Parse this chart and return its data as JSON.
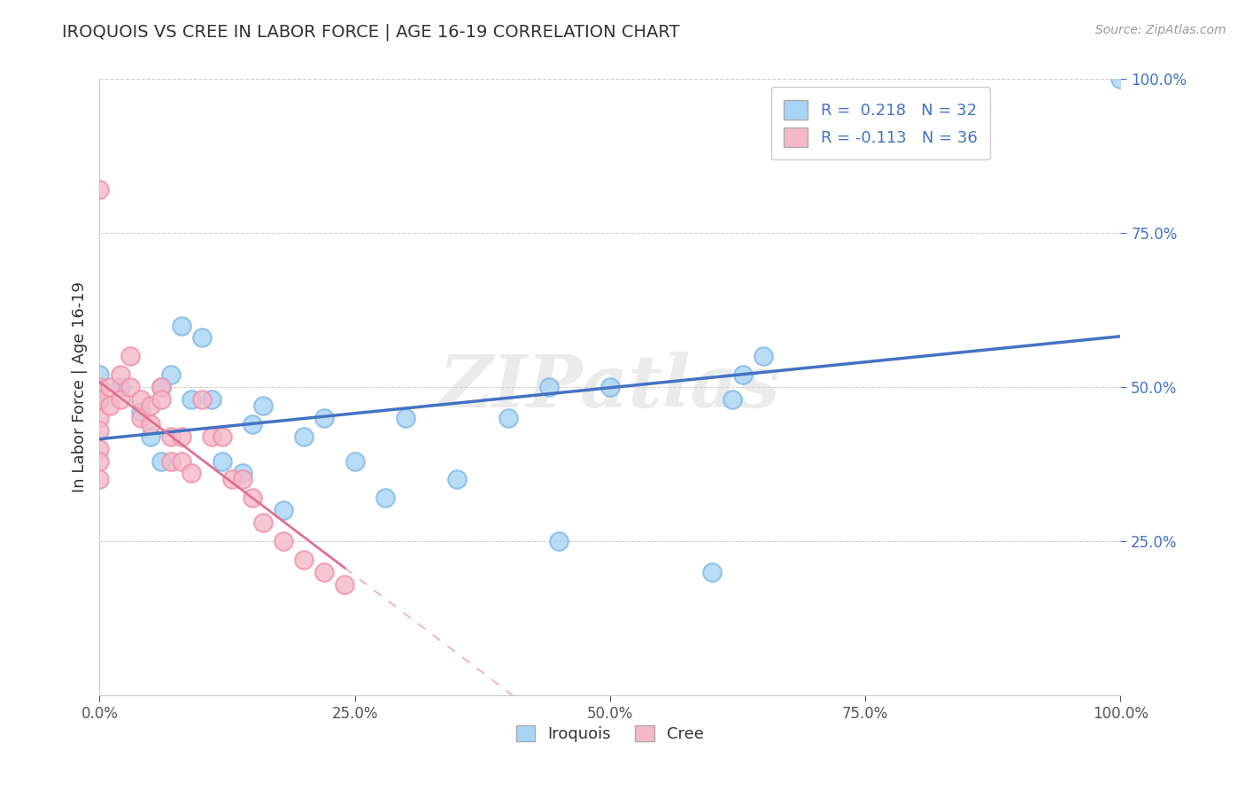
{
  "title": "IROQUOIS VS CREE IN LABOR FORCE | AGE 16-19 CORRELATION CHART",
  "source": "Source: ZipAtlas.com",
  "ylabel": "In Labor Force | Age 16-19",
  "xlim": [
    0.0,
    1.0
  ],
  "ylim": [
    0.0,
    1.0
  ],
  "xtick_positions": [
    0.0,
    0.25,
    0.5,
    0.75,
    1.0
  ],
  "ytick_positions": [
    0.25,
    0.5,
    0.75,
    1.0
  ],
  "iroquois_color": "#A8D4F5",
  "cree_color": "#F5B8C8",
  "iroquois_edge_color": "#7EB8E8",
  "cree_edge_color": "#F090A8",
  "iroquois_line_color": "#4472C4",
  "cree_line_color": "#E07090",
  "tick_label_color": "#4472C4",
  "r_iroquois": 0.218,
  "n_iroquois": 32,
  "r_cree": -0.113,
  "n_cree": 36,
  "watermark": "ZIPatlas",
  "background_color": "#FFFFFF",
  "iroquois_x": [
    0.0,
    0.0,
    0.02,
    0.04,
    0.05,
    0.06,
    0.06,
    0.07,
    0.08,
    0.09,
    0.1,
    0.11,
    0.12,
    0.14,
    0.15,
    0.16,
    0.18,
    0.2,
    0.22,
    0.25,
    0.28,
    0.3,
    0.35,
    0.4,
    0.44,
    0.45,
    0.5,
    0.6,
    0.62,
    0.63,
    0.65,
    1.0
  ],
  "iroquois_y": [
    0.52,
    0.48,
    0.5,
    0.46,
    0.42,
    0.38,
    0.5,
    0.52,
    0.6,
    0.48,
    0.58,
    0.48,
    0.38,
    0.36,
    0.44,
    0.47,
    0.3,
    0.42,
    0.45,
    0.38,
    0.32,
    0.45,
    0.35,
    0.45,
    0.5,
    0.25,
    0.5,
    0.2,
    0.48,
    0.52,
    0.55,
    1.0
  ],
  "cree_x": [
    0.0,
    0.0,
    0.0,
    0.0,
    0.0,
    0.0,
    0.0,
    0.0,
    0.01,
    0.01,
    0.02,
    0.02,
    0.03,
    0.03,
    0.04,
    0.04,
    0.05,
    0.05,
    0.06,
    0.06,
    0.07,
    0.07,
    0.08,
    0.08,
    0.09,
    0.1,
    0.11,
    0.12,
    0.13,
    0.14,
    0.15,
    0.16,
    0.18,
    0.2,
    0.22,
    0.24
  ],
  "cree_y": [
    0.82,
    0.5,
    0.48,
    0.45,
    0.43,
    0.4,
    0.38,
    0.35,
    0.5,
    0.47,
    0.52,
    0.48,
    0.55,
    0.5,
    0.48,
    0.45,
    0.47,
    0.44,
    0.5,
    0.48,
    0.38,
    0.42,
    0.42,
    0.38,
    0.36,
    0.48,
    0.42,
    0.42,
    0.35,
    0.35,
    0.32,
    0.28,
    0.25,
    0.22,
    0.2,
    0.18
  ],
  "legend_iroquois_label": "R =  0.218   N = 32",
  "legend_cree_label": "R = -0.113   N = 36"
}
